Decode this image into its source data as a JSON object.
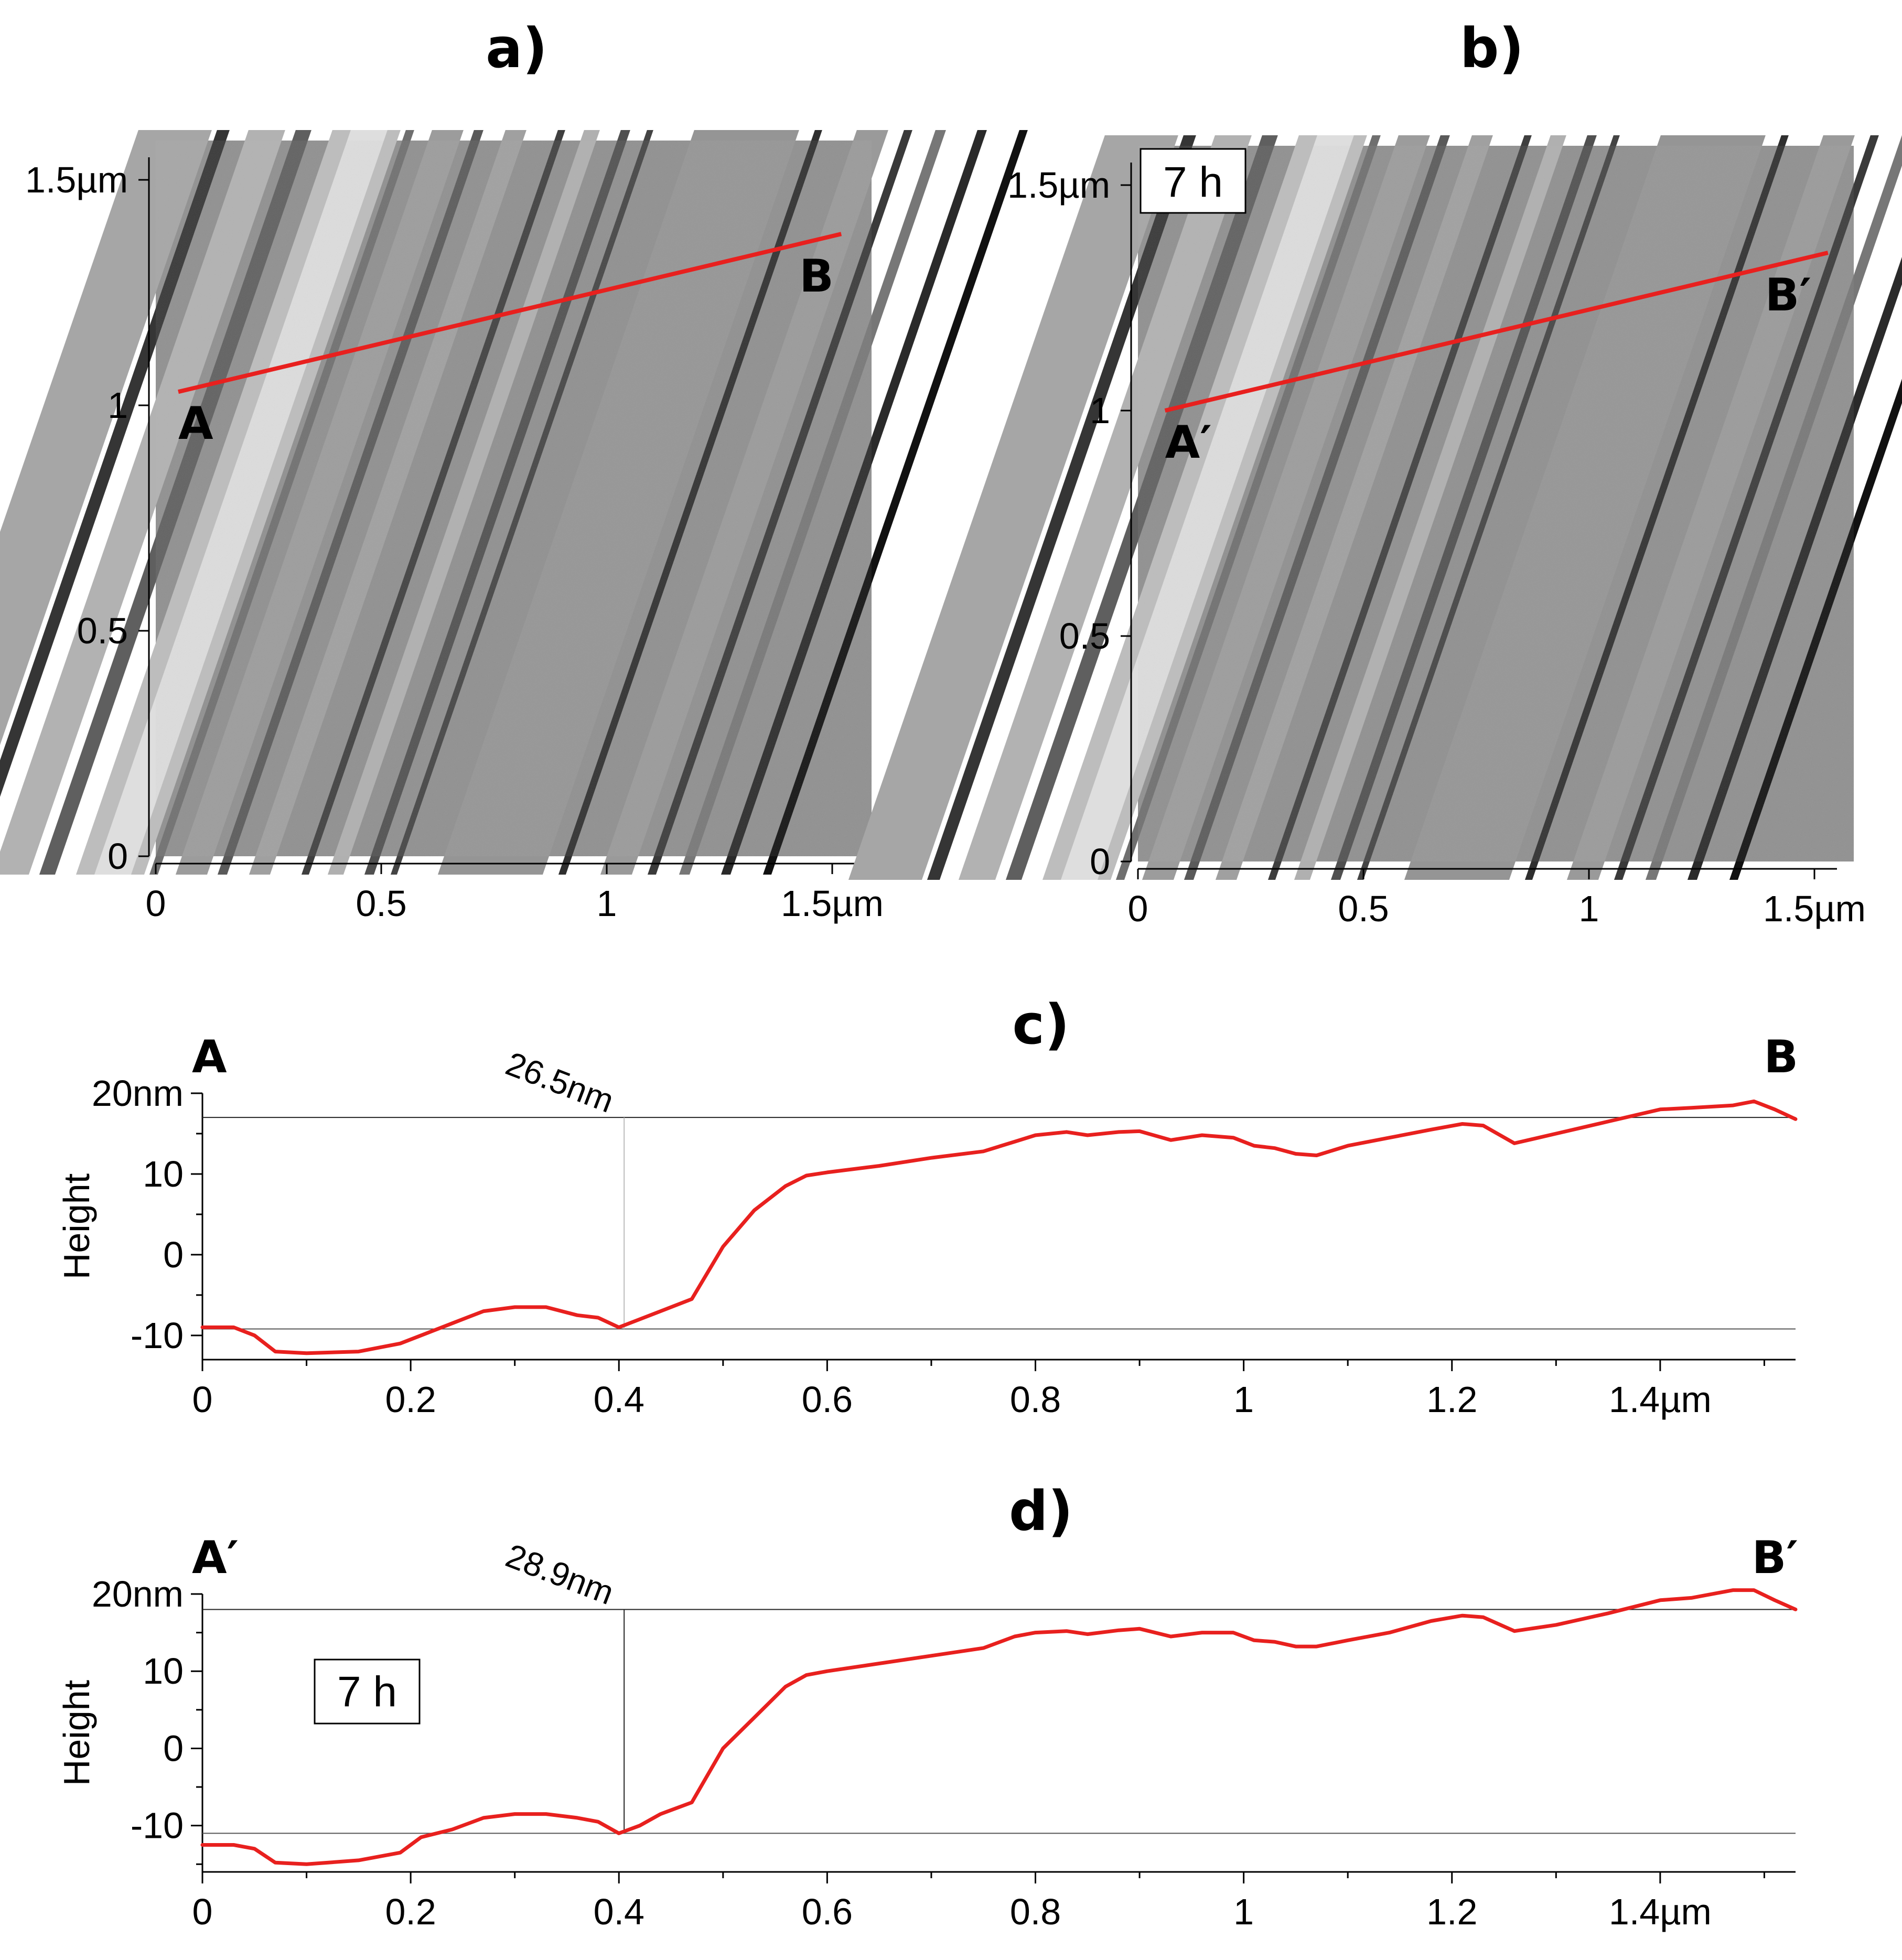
{
  "panels": {
    "a": {
      "label": "a)"
    },
    "b": {
      "label": "b)",
      "badge": "7 h"
    },
    "c": {
      "label": "c)"
    },
    "d": {
      "label": "d)",
      "badge": "7 h"
    }
  },
  "chart_data": [
    {
      "id": "a",
      "type": "heatmap",
      "title": "a)",
      "description_units": "µm",
      "xlim": [
        0,
        1.55
      ],
      "ylim": [
        0,
        1.55
      ],
      "xticks": [
        {
          "value": 0,
          "label": "0"
        },
        {
          "value": 0.5,
          "label": "0.5"
        },
        {
          "value": 1,
          "label": "1"
        },
        {
          "value": 1.5,
          "label": "1.5µm"
        }
      ],
      "yticks": [
        {
          "value": 0,
          "label": "0"
        },
        {
          "value": 0.5,
          "label": "0.5"
        },
        {
          "value": 1,
          "label": "1"
        },
        {
          "value": 1.5,
          "label": "1.5µm"
        }
      ],
      "profile_line": {
        "start": [
          0.05,
          1.03
        ],
        "end": [
          1.52,
          1.38
        ],
        "start_label": "A",
        "end_label": "B",
        "color": "#e8201e"
      }
    },
    {
      "id": "b",
      "type": "heatmap",
      "title": "b)",
      "badge": "7 h",
      "xlim": [
        0,
        1.55
      ],
      "ylim": [
        0,
        1.55
      ],
      "xticks": [
        {
          "value": 0,
          "label": "0"
        },
        {
          "value": 0.5,
          "label": "0.5"
        },
        {
          "value": 1,
          "label": "1"
        },
        {
          "value": 1.5,
          "label": "1.5µm"
        }
      ],
      "yticks": [
        {
          "value": 0,
          "label": "0"
        },
        {
          "value": 0.5,
          "label": "0.5"
        },
        {
          "value": 1,
          "label": "1"
        },
        {
          "value": 1.5,
          "label": "1.5µm"
        }
      ],
      "profile_line": {
        "start": [
          0.06,
          1.0
        ],
        "end": [
          1.53,
          1.35
        ],
        "start_label": "A′",
        "end_label": "B′",
        "color": "#e8201e"
      }
    },
    {
      "id": "c",
      "type": "line",
      "title": "c)",
      "ylabel": "Height",
      "xlim": [
        0,
        1.53
      ],
      "ylim": [
        -13,
        20
      ],
      "start_label": "A",
      "end_label": "B",
      "xticks": [
        {
          "value": 0,
          "label": "0"
        },
        {
          "value": 0.2,
          "label": "0.2"
        },
        {
          "value": 0.4,
          "label": "0.4"
        },
        {
          "value": 0.6,
          "label": "0.6"
        },
        {
          "value": 0.8,
          "label": "0.8"
        },
        {
          "value": 1,
          "label": "1"
        },
        {
          "value": 1.2,
          "label": "1.2"
        },
        {
          "value": 1.4,
          "label": "1.4µm"
        }
      ],
      "yticks": [
        {
          "value": 20,
          "label": "20nm"
        },
        {
          "value": 10,
          "label": "10"
        },
        {
          "value": 0,
          "label": "0"
        },
        {
          "value": -10,
          "label": "-10"
        }
      ],
      "reference_lines": [
        {
          "y": 17.0
        },
        {
          "y": -9.2
        }
      ],
      "marker": {
        "x": 0.405,
        "label": "26.5nm"
      },
      "series": [
        {
          "name": "A-B profile",
          "color": "#e8201e",
          "x": [
            0,
            0.03,
            0.05,
            0.07,
            0.1,
            0.15,
            0.19,
            0.21,
            0.24,
            0.27,
            0.3,
            0.33,
            0.36,
            0.38,
            0.4,
            0.42,
            0.44,
            0.47,
            0.5,
            0.53,
            0.56,
            0.58,
            0.6,
            0.65,
            0.7,
            0.75,
            0.78,
            0.8,
            0.83,
            0.85,
            0.88,
            0.9,
            0.93,
            0.96,
            0.99,
            1.01,
            1.03,
            1.05,
            1.07,
            1.1,
            1.14,
            1.18,
            1.21,
            1.23,
            1.26,
            1.3,
            1.35,
            1.4,
            1.43,
            1.47,
            1.49,
            1.51,
            1.53
          ],
          "y": [
            -9.0,
            -9.0,
            -10.0,
            -12.0,
            -12.2,
            -12.0,
            -11.0,
            -10.0,
            -8.5,
            -7.0,
            -6.5,
            -6.5,
            -7.5,
            -7.8,
            -9.0,
            -8.0,
            -7.0,
            -5.5,
            1.0,
            5.5,
            8.5,
            9.8,
            10.2,
            11.0,
            12.0,
            12.8,
            14.0,
            14.8,
            15.2,
            14.8,
            15.2,
            15.3,
            14.2,
            14.8,
            14.5,
            13.5,
            13.2,
            12.5,
            12.3,
            13.5,
            14.5,
            15.5,
            16.2,
            16.0,
            13.8,
            15.0,
            16.5,
            18.0,
            18.2,
            18.5,
            19.0,
            18.0,
            16.8
          ]
        }
      ]
    },
    {
      "id": "d",
      "type": "line",
      "title": "d)",
      "ylabel": "Height",
      "badge": "7 h",
      "xlim": [
        0,
        1.53
      ],
      "ylim": [
        -16,
        20
      ],
      "start_label": "A′",
      "end_label": "B′",
      "xticks": [
        {
          "value": 0,
          "label": "0"
        },
        {
          "value": 0.2,
          "label": "0.2"
        },
        {
          "value": 0.4,
          "label": "0.4"
        },
        {
          "value": 0.6,
          "label": "0.6"
        },
        {
          "value": 0.8,
          "label": "0.8"
        },
        {
          "value": 1,
          "label": "1"
        },
        {
          "value": 1.2,
          "label": "1.2"
        },
        {
          "value": 1.4,
          "label": "1.4µm"
        }
      ],
      "yticks": [
        {
          "value": 20,
          "label": "20nm"
        },
        {
          "value": 10,
          "label": "10"
        },
        {
          "value": 0,
          "label": "0"
        },
        {
          "value": -10,
          "label": "-10"
        }
      ],
      "reference_lines": [
        {
          "y": 18.0
        },
        {
          "y": -11.0
        }
      ],
      "marker": {
        "x": 0.405,
        "label": "28.9nm"
      },
      "series": [
        {
          "name": "A′-B′ profile",
          "color": "#e8201e",
          "x": [
            0,
            0.03,
            0.05,
            0.07,
            0.1,
            0.15,
            0.19,
            0.21,
            0.24,
            0.27,
            0.3,
            0.33,
            0.36,
            0.38,
            0.4,
            0.42,
            0.44,
            0.47,
            0.5,
            0.53,
            0.56,
            0.58,
            0.6,
            0.65,
            0.7,
            0.75,
            0.78,
            0.8,
            0.83,
            0.85,
            0.88,
            0.9,
            0.93,
            0.96,
            0.99,
            1.01,
            1.03,
            1.05,
            1.07,
            1.1,
            1.14,
            1.18,
            1.21,
            1.23,
            1.26,
            1.3,
            1.35,
            1.4,
            1.43,
            1.47,
            1.49,
            1.51,
            1.53
          ],
          "y": [
            -12.5,
            -12.5,
            -13.0,
            -14.8,
            -15.0,
            -14.5,
            -13.5,
            -11.5,
            -10.5,
            -9.0,
            -8.5,
            -8.5,
            -9.0,
            -9.5,
            -11.0,
            -10.0,
            -8.5,
            -7.0,
            0.0,
            4.0,
            8.0,
            9.5,
            10.0,
            11.0,
            12.0,
            13.0,
            14.5,
            15.0,
            15.2,
            14.8,
            15.3,
            15.5,
            14.5,
            15.0,
            15.0,
            14.0,
            13.8,
            13.2,
            13.2,
            14.0,
            15.0,
            16.5,
            17.2,
            17.0,
            15.2,
            16.0,
            17.5,
            19.2,
            19.5,
            20.5,
            20.5,
            19.2,
            18.0
          ]
        }
      ]
    }
  ]
}
